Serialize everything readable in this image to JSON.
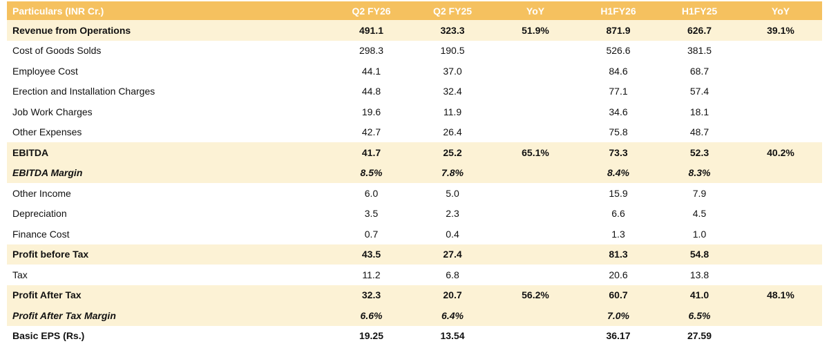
{
  "table": {
    "headers": [
      "Particulars (INR Cr.)",
      "Q2 FY26",
      "Q2 FY25",
      "YoY",
      "H1FY26",
      "H1FY25",
      "YoY"
    ],
    "rows": [
      {
        "cells": [
          "Revenue from Operations",
          "491.1",
          "323.3",
          "51.9%",
          "871.9",
          "626.7",
          "39.1%"
        ]
      },
      {
        "cells": [
          "Cost of Goods Solds",
          "298.3",
          "190.5",
          "",
          "526.6",
          "381.5",
          ""
        ]
      },
      {
        "cells": [
          "Employee Cost",
          "44.1",
          "37.0",
          "",
          "84.6",
          "68.7",
          ""
        ]
      },
      {
        "cells": [
          "Erection and Installation Charges",
          "44.8",
          "32.4",
          "",
          "77.1",
          "57.4",
          ""
        ]
      },
      {
        "cells": [
          "Job Work Charges",
          "19.6",
          "11.9",
          "",
          "34.6",
          "18.1",
          ""
        ]
      },
      {
        "cells": [
          "Other Expenses",
          "42.7",
          "26.4",
          "",
          "75.8",
          "48.7",
          ""
        ]
      },
      {
        "cells": [
          "EBITDA",
          "41.7",
          "25.2",
          "65.1%",
          "73.3",
          "52.3",
          "40.2%"
        ]
      },
      {
        "cells": [
          "EBITDA Margin",
          "8.5%",
          "7.8%",
          "",
          "8.4%",
          "8.3%",
          ""
        ]
      },
      {
        "cells": [
          "Other Income",
          "6.0",
          "5.0",
          "",
          "15.9",
          "7.9",
          ""
        ]
      },
      {
        "cells": [
          "Depreciation",
          "3.5",
          "2.3",
          "",
          "6.6",
          "4.5",
          ""
        ]
      },
      {
        "cells": [
          "Finance Cost",
          "0.7",
          "0.4",
          "",
          "1.3",
          "1.0",
          ""
        ]
      },
      {
        "cells": [
          "Profit before Tax",
          "43.5",
          "27.4",
          "",
          "81.3",
          "54.8",
          ""
        ]
      },
      {
        "cells": [
          "Tax",
          "11.2",
          "6.8",
          "",
          "20.6",
          "13.8",
          ""
        ]
      },
      {
        "cells": [
          "Profit After Tax",
          "32.3",
          "20.7",
          "56.2%",
          "60.7",
          "41.0",
          "48.1%"
        ]
      },
      {
        "cells": [
          "Profit After Tax Margin",
          "6.6%",
          "6.4%",
          "",
          "7.0%",
          "6.5%",
          ""
        ]
      },
      {
        "cells": [
          "Basic EPS (Rs.)",
          "19.25",
          "13.54",
          "",
          "36.17",
          "27.59",
          ""
        ]
      }
    ]
  },
  "colors": {
    "header_bg": "#f5c15f",
    "header_text": "#ffffff",
    "highlight_row_bg": "#fcf2d5"
  }
}
